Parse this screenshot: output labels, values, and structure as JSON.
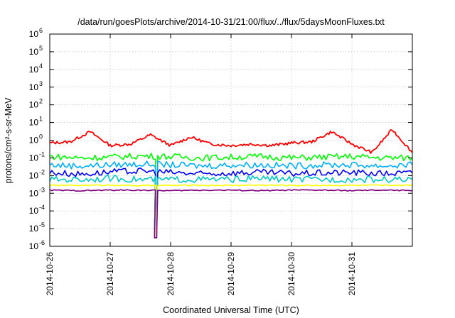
{
  "chart_data": {
    "type": "line",
    "title": "/data/run/goesPlots/archive/2014-10-31/21:00/flux/../flux/5daysMoonFluxes.txt",
    "xlabel": "Coordinated Universal Time (UTC)",
    "ylabel": "protons/cm²-s-sr-MeV",
    "y_scale": "log",
    "ylim": [
      1e-06,
      1000000.0
    ],
    "xlim": [
      "2014-10-26",
      "2014-11-01"
    ],
    "x_ticks": [
      "2014-10-26",
      "2014-10-27",
      "2014-10-28",
      "2014-10-29",
      "2014-10-30",
      "2014-10-31"
    ],
    "y_ticks": [
      {
        "base": "10",
        "exp": "-6"
      },
      {
        "base": "10",
        "exp": "-5"
      },
      {
        "base": "10",
        "exp": "-4"
      },
      {
        "base": "10",
        "exp": "-3"
      },
      {
        "base": "10",
        "exp": "-2"
      },
      {
        "base": "10",
        "exp": "-1"
      },
      {
        "base": "10",
        "exp": "0"
      },
      {
        "base": "10",
        "exp": "1"
      },
      {
        "base": "10",
        "exp": "2"
      },
      {
        "base": "10",
        "exp": "3"
      },
      {
        "base": "10",
        "exp": "4"
      },
      {
        "base": "10",
        "exp": "5"
      },
      {
        "base": "10",
        "exp": "6"
      }
    ],
    "grid": true,
    "series": [
      {
        "color": "#ff0000",
        "x": [
          "2014-10-26T00:00",
          "2014-10-26T08:00",
          "2014-10-26T16:00",
          "2014-10-27T00:00",
          "2014-10-27T08:00",
          "2014-10-27T16:00",
          "2014-10-28T00:00",
          "2014-10-28T08:00",
          "2014-10-28T16:00",
          "2014-10-29T00:00",
          "2014-10-29T08:00",
          "2014-10-29T16:00",
          "2014-10-30T00:00",
          "2014-10-30T08:00",
          "2014-10-30T16:00",
          "2014-10-31T00:00",
          "2014-10-31T08:00",
          "2014-10-31T16:00",
          "2014-11-01T00:00"
        ],
        "values": [
          0.7,
          0.8,
          3.0,
          0.5,
          0.6,
          2.0,
          0.5,
          1.5,
          0.6,
          0.5,
          0.6,
          0.5,
          0.7,
          0.8,
          3.0,
          0.6,
          0.2,
          4.0,
          0.2
        ]
      },
      {
        "color": "#00ff00",
        "x": [
          "2014-10-26T00:00",
          "2014-10-26T12:00",
          "2014-10-27T00:00",
          "2014-10-27T12:00",
          "2014-10-28T00:00",
          "2014-10-28T12:00",
          "2014-10-29T00:00",
          "2014-10-29T12:00",
          "2014-10-30T00:00",
          "2014-10-30T12:00",
          "2014-10-31T00:00",
          "2014-10-31T12:00",
          "2014-11-01T00:00"
        ],
        "values": [
          0.12,
          0.1,
          0.11,
          0.13,
          0.12,
          0.1,
          0.11,
          0.12,
          0.1,
          0.11,
          0.12,
          0.1,
          0.1
        ]
      },
      {
        "color": "#00b0ff",
        "x": [
          "2014-10-26T00:00",
          "2014-10-26T12:00",
          "2014-10-27T00:00",
          "2014-10-27T12:00",
          "2014-10-28T00:00",
          "2014-10-28T12:00",
          "2014-10-29T00:00",
          "2014-10-29T12:00",
          "2014-10-30T00:00",
          "2014-10-30T12:00",
          "2014-10-31T00:00",
          "2014-10-31T12:00",
          "2014-11-01T00:00"
        ],
        "values": [
          0.04,
          0.035,
          0.04,
          0.045,
          0.04,
          0.035,
          0.04,
          0.04,
          0.035,
          0.04,
          0.04,
          0.035,
          0.04
        ]
      },
      {
        "color": "#0000ff",
        "x": [
          "2014-10-26T00:00",
          "2014-10-26T12:00",
          "2014-10-27T00:00",
          "2014-10-27T12:00",
          "2014-10-28T00:00",
          "2014-10-28T12:00",
          "2014-10-29T00:00",
          "2014-10-29T12:00",
          "2014-10-30T00:00",
          "2014-10-30T12:00",
          "2014-10-31T00:00",
          "2014-10-31T12:00",
          "2014-11-01T00:00"
        ],
        "values": [
          0.015,
          0.012,
          0.016,
          0.018,
          0.015,
          0.012,
          0.014,
          0.015,
          0.013,
          0.014,
          0.015,
          0.013,
          0.014
        ]
      },
      {
        "color": "#00c8c8",
        "x": [
          "2014-10-26T00:00",
          "2014-10-26T12:00",
          "2014-10-27T00:00",
          "2014-10-27T12:00",
          "2014-10-28T00:00",
          "2014-10-28T12:00",
          "2014-10-29T00:00",
          "2014-10-29T12:00",
          "2014-10-30T00:00",
          "2014-10-30T12:00",
          "2014-10-31T00:00",
          "2014-10-31T12:00",
          "2014-11-01T00:00"
        ],
        "values": [
          0.006,
          0.006,
          0.007,
          0.006,
          0.006,
          0.006,
          0.006,
          0.007,
          0.006,
          0.006,
          0.006,
          0.006,
          0.006
        ]
      },
      {
        "color": "#ffff00",
        "x": [
          "2014-10-26T00:00",
          "2014-10-26T12:00",
          "2014-10-27T00:00",
          "2014-10-27T12:00",
          "2014-10-28T00:00",
          "2014-10-28T12:00",
          "2014-10-29T00:00",
          "2014-10-29T12:00",
          "2014-10-30T00:00",
          "2014-10-30T12:00",
          "2014-10-31T00:00",
          "2014-10-31T12:00",
          "2014-11-01T00:00"
        ],
        "values": [
          0.0028,
          0.0028,
          0.0029,
          0.0027,
          0.0028,
          0.0028,
          0.0028,
          0.0029,
          0.0028,
          0.0028,
          0.0028,
          0.0028,
          0.0028
        ]
      },
      {
        "color": "#800080",
        "x": [
          "2014-10-26T00:00",
          "2014-10-26T12:00",
          "2014-10-27T00:00",
          "2014-10-27T12:00",
          "2014-10-28T00:00",
          "2014-10-28T12:00",
          "2014-10-29T00:00",
          "2014-10-29T12:00",
          "2014-10-30T00:00",
          "2014-10-30T12:00",
          "2014-10-31T00:00",
          "2014-10-31T12:00",
          "2014-11-01T00:00"
        ],
        "values": [
          0.0015,
          0.0014,
          0.0015,
          0.0015,
          0.0014,
          0.0015,
          0.0015,
          0.0014,
          0.0015,
          0.0015,
          0.0014,
          0.0015,
          0.0014
        ]
      }
    ],
    "dip": {
      "x": "2014-10-27T18:00",
      "min_value": 3e-06
    }
  }
}
